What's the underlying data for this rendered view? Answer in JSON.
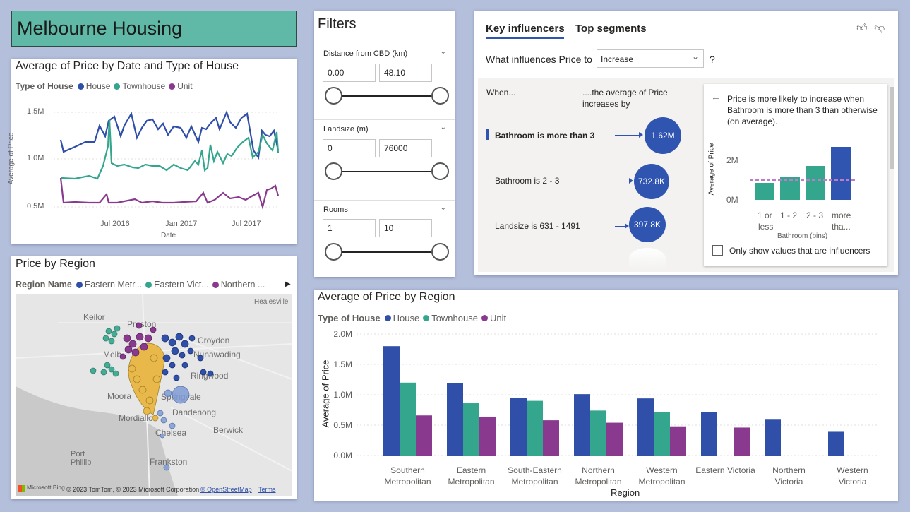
{
  "report_title": "Melbourne Housing",
  "line_chart": {
    "title": "Average of Price by Date and Type of House",
    "legend_title": "Type of House",
    "legend": [
      {
        "name": "House",
        "color": "#2f4fa8"
      },
      {
        "name": "Townhouse",
        "color": "#33a68d"
      },
      {
        "name": "Unit",
        "color": "#8a3a8e"
      }
    ],
    "y_ticks": [
      "1.5M",
      "1.0M",
      "0.5M"
    ],
    "x_ticks": [
      "Jul 2016",
      "Jan 2017",
      "Jul 2017"
    ],
    "xlabel": "Date",
    "ylabel": "Average of Price"
  },
  "map": {
    "title": "Price by Region",
    "legend_title": "Region Name",
    "legend": [
      {
        "name": "Eastern Metr...",
        "color": "#2f4fa8"
      },
      {
        "name": "Eastern Vict...",
        "color": "#33a68d"
      },
      {
        "name": "Northern ...",
        "color": "#8a3a8e"
      }
    ],
    "places": [
      "Keilor",
      "Healesville",
      "Preston",
      "Croydon",
      "Nunawading",
      "Melb",
      "Moora",
      "Springvale",
      "Dandenong",
      "Mordiallo",
      "Berwick",
      "Chelsea",
      "Port Phillip",
      "Frankston",
      "Ringwood"
    ],
    "attribution_brand": "Microsoft Bing",
    "attribution": "© 2023 TomTom, © 2023 Microsoft Corporation,",
    "osm": "© OpenStreetMap",
    "terms": "Terms"
  },
  "filters": {
    "title": "Filters",
    "sections": [
      {
        "label": "Distance from CBD (km)",
        "min": "0.00",
        "max": "48.10"
      },
      {
        "label": "Landsize (m)",
        "min": "0",
        "max": "76000"
      },
      {
        "label": "Rooms",
        "min": "1",
        "max": "10"
      }
    ]
  },
  "key_influencers": {
    "tab_active": "Key influencers",
    "tab_other": "Top segments",
    "question_prefix": "What influences Price to",
    "question_value": "Increase",
    "question_suffix": "?",
    "when_header": "When...",
    "avg_header_line1": "....the average of Price",
    "avg_header_line2": "increases by",
    "influencers": [
      {
        "label": "Bathroom is more than 3",
        "value": "1.62M"
      },
      {
        "label": "Bathroom is 2 - 3",
        "value": "732.8K"
      },
      {
        "label": "Landsize is 631 - 1491",
        "value": "397.8K"
      }
    ],
    "detail_line1": "Price is more likely to increase when",
    "detail_line2": "Bathroom is more than 3 than otherwise",
    "detail_line3": "(on average).",
    "detail_ylabel": "Average of Price",
    "detail_y_ticks": [
      "2M",
      "0M"
    ],
    "detail_xlabel": "Bathroom (bins)",
    "detail_bins": [
      {
        "line1": "1 or",
        "line2": "less"
      },
      {
        "line1": "1 - 2",
        "line2": ""
      },
      {
        "line1": "2 - 3",
        "line2": ""
      },
      {
        "line1": "more",
        "line2": "tha..."
      }
    ],
    "checkbox_label": "Only show values that are influencers"
  },
  "chart_data": {
    "type": "bar",
    "title": "Average of Price by Region",
    "legend_title": "Type of House",
    "xlabel": "Region",
    "ylabel": "Average of Price",
    "ylim": [
      0,
      2000000
    ],
    "y_ticks": [
      "2.0M",
      "1.5M",
      "1.0M",
      "0.5M",
      "0.0M"
    ],
    "categories": [
      {
        "line1": "Southern",
        "line2": "Metropolitan"
      },
      {
        "line1": "Eastern",
        "line2": "Metropolitan"
      },
      {
        "line1": "South-Eastern",
        "line2": "Metropolitan"
      },
      {
        "line1": "Northern",
        "line2": "Metropolitan"
      },
      {
        "line1": "Western",
        "line2": "Metropolitan"
      },
      {
        "line1": "Eastern Victoria",
        "line2": ""
      },
      {
        "line1": "Northern",
        "line2": "Victoria"
      },
      {
        "line1": "Western",
        "line2": "Victoria"
      }
    ],
    "series": [
      {
        "name": "House",
        "color": "#2f4fa8",
        "values": [
          1800000,
          1190000,
          950000,
          1010000,
          940000,
          710000,
          590000,
          390000
        ]
      },
      {
        "name": "Townhouse",
        "color": "#33a68d",
        "values": [
          1200000,
          860000,
          900000,
          740000,
          710000,
          null,
          null,
          null
        ]
      },
      {
        "name": "Unit",
        "color": "#8a3a8e",
        "values": [
          660000,
          640000,
          580000,
          540000,
          480000,
          460000,
          null,
          null
        ]
      }
    ]
  }
}
